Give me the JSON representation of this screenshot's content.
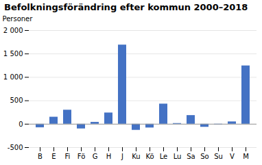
{
  "chart_data": {
    "type": "bar",
    "title": "Befolkningsförändring efter kommun 2000–2018",
    "ylabel": "Personer",
    "categories": [
      "B",
      "E",
      "Fi",
      "Fö",
      "G",
      "H",
      "J",
      "Ku",
      "Kö",
      "Le",
      "Lu",
      "Sa",
      "So",
      "Su",
      "V",
      "M"
    ],
    "values": [
      -75,
      150,
      300,
      -100,
      40,
      240,
      1690,
      -130,
      -80,
      430,
      15,
      185,
      -65,
      -15,
      50,
      1245
    ],
    "color": "#4472C4",
    "ylim": [
      -500,
      2000
    ],
    "yticks": [
      -500,
      0,
      500,
      {
        "value": 1000,
        "label": "1 000"
      },
      {
        "value": 1500,
        "label": "1 500"
      },
      {
        "value": 2000,
        "label": "2 000"
      }
    ],
    "grid": true
  }
}
